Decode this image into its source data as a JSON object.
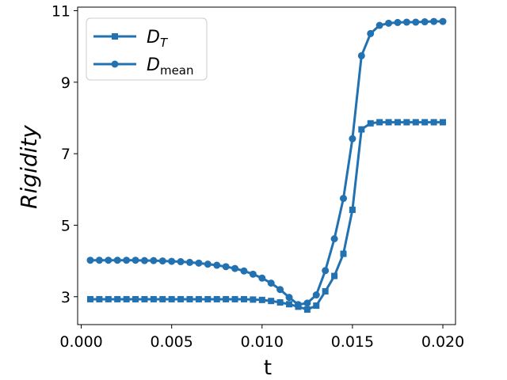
{
  "chart_data": {
    "type": "line",
    "xlabel": "t",
    "ylabel": "Rigidity",
    "xlim": [
      -0.0002,
      0.0207
    ],
    "ylim": [
      2.22,
      11.1
    ],
    "xticks": [
      0.0,
      0.005,
      0.01,
      0.015,
      0.02
    ],
    "xtick_labels": [
      "0.000",
      "0.005",
      "0.010",
      "0.015",
      "0.020"
    ],
    "yticks": [
      3,
      5,
      7,
      9,
      11
    ],
    "ytick_labels": [
      "3",
      "5",
      "7",
      "9",
      "11"
    ],
    "legend_position": "top-left",
    "grid": false,
    "line_color": "#2271b1",
    "x": [
      0.0005,
      0.001,
      0.0015,
      0.002,
      0.0025,
      0.003,
      0.0035,
      0.004,
      0.0045,
      0.005,
      0.0055,
      0.006,
      0.0065,
      0.007,
      0.0075,
      0.008,
      0.0085,
      0.009,
      0.0095,
      0.01,
      0.0105,
      0.011,
      0.0115,
      0.012,
      0.0125,
      0.013,
      0.0135,
      0.014,
      0.0145,
      0.015,
      0.0155,
      0.016,
      0.0165,
      0.017,
      0.0175,
      0.018,
      0.0185,
      0.019,
      0.0195,
      0.02
    ],
    "series": [
      {
        "name": "D_T",
        "label_main": "D",
        "label_sub": "T",
        "marker": "square",
        "values": [
          2.93,
          2.93,
          2.93,
          2.93,
          2.93,
          2.93,
          2.93,
          2.93,
          2.93,
          2.93,
          2.93,
          2.93,
          2.93,
          2.93,
          2.93,
          2.93,
          2.93,
          2.93,
          2.92,
          2.91,
          2.88,
          2.84,
          2.79,
          2.72,
          2.64,
          2.75,
          3.15,
          3.58,
          4.2,
          5.43,
          7.68,
          7.85,
          7.88,
          7.88,
          7.88,
          7.88,
          7.88,
          7.88,
          7.88,
          7.88
        ]
      },
      {
        "name": "D_mean",
        "label_main": "D",
        "label_sub": "mean",
        "marker": "circle",
        "values": [
          4.02,
          4.02,
          4.02,
          4.02,
          4.02,
          4.02,
          4.01,
          4.01,
          4.0,
          3.99,
          3.98,
          3.96,
          3.94,
          3.91,
          3.88,
          3.84,
          3.79,
          3.72,
          3.63,
          3.52,
          3.38,
          3.2,
          2.98,
          2.78,
          2.82,
          3.05,
          3.73,
          4.62,
          5.75,
          7.42,
          9.74,
          10.36,
          10.59,
          10.65,
          10.67,
          10.68,
          10.68,
          10.69,
          10.7,
          10.7
        ]
      }
    ]
  }
}
